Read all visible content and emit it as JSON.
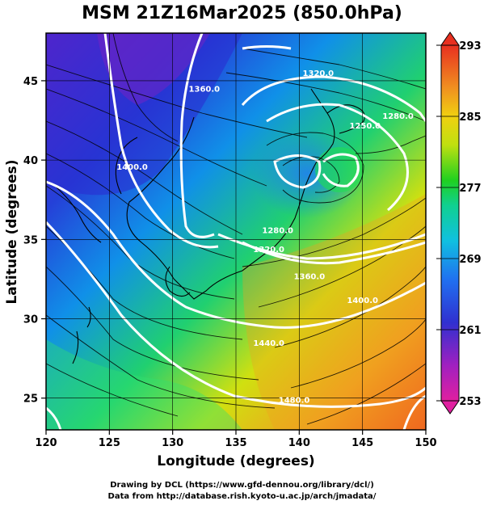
{
  "title": "MSM 21Z16Mar2025 (850.0hPa)",
  "map": {
    "lon_range": [
      120,
      150
    ],
    "lat_range": [
      23,
      48
    ],
    "lon_ticks": [
      120,
      125,
      130,
      135,
      140,
      145,
      150
    ],
    "lat_ticks": [
      25,
      30,
      35,
      40,
      45
    ],
    "lon_tick_labels": [
      "120",
      "125",
      "130",
      "135",
      "140",
      "145",
      "150"
    ],
    "lat_tick_labels": [
      "25",
      "30",
      "35",
      "40",
      "45"
    ],
    "xlabel": "Longitude (degrees)",
    "ylabel": "Latitude  (degrees)",
    "grid": true,
    "contour_color": "#ffffff",
    "contour_labels": [
      {
        "text": "1360.0",
        "lon": 132.5,
        "lat": 44.3
      },
      {
        "text": "1320.0",
        "lon": 141.5,
        "lat": 45.3
      },
      {
        "text": "1250.0",
        "lon": 145.2,
        "lat": 42.0
      },
      {
        "text": "1280.0",
        "lon": 147.8,
        "lat": 42.6
      },
      {
        "text": "1400.0",
        "lon": 126.8,
        "lat": 39.4
      },
      {
        "text": "1280.0",
        "lon": 138.3,
        "lat": 35.4
      },
      {
        "text": "1320.0",
        "lon": 137.6,
        "lat": 34.2
      },
      {
        "text": "1360.0",
        "lon": 140.8,
        "lat": 32.5
      },
      {
        "text": "1400.0",
        "lon": 145.0,
        "lat": 31.0
      },
      {
        "text": "1440.0",
        "lon": 137.6,
        "lat": 28.3
      },
      {
        "text": "1480.0",
        "lon": 139.6,
        "lat": 24.7
      }
    ]
  },
  "colorbar": {
    "min": 253,
    "max": 293,
    "labels": [
      "293",
      "285",
      "277",
      "269",
      "261",
      "253"
    ],
    "colors": [
      "#e02070",
      "#a020c0",
      "#3030d0",
      "#2070f0",
      "#10c0e0",
      "#10d090",
      "#20d020",
      "#c0e010",
      "#f0d010",
      "#f09020",
      "#f05020",
      "#e83020"
    ]
  },
  "credit": {
    "line1": "Drawing by DCL (https://www.gfd-dennou.org/library/dcl/)",
    "line2": "Data from http://database.rish.kyoto-u.ac.jp/arch/jmadata/"
  }
}
